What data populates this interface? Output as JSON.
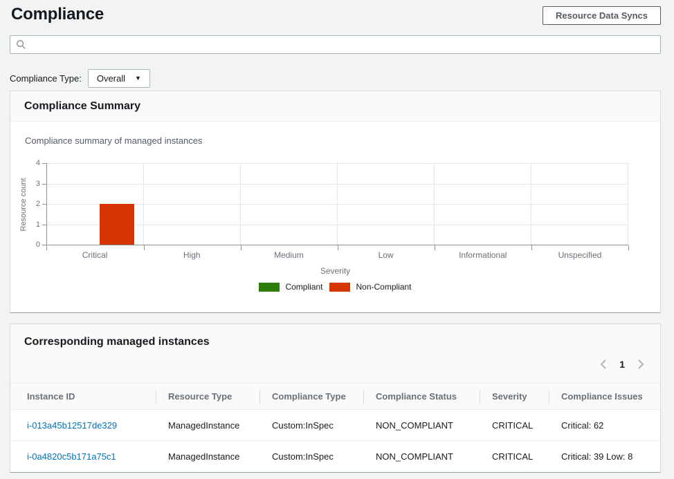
{
  "page": {
    "title": "Compliance"
  },
  "header": {
    "resource_data_syncs_label": "Resource Data Syncs"
  },
  "search": {
    "value": "",
    "placeholder": ""
  },
  "filter": {
    "label": "Compliance Type:",
    "selected_option": "Overall"
  },
  "summary_panel": {
    "title": "Compliance Summary",
    "subtitle": "Compliance summary of managed instances"
  },
  "chart_data": {
    "type": "bar",
    "title": "Compliance summary of managed instances",
    "categories": [
      "Critical",
      "High",
      "Medium",
      "Low",
      "Informational",
      "Unspecified"
    ],
    "series": [
      {
        "name": "Compliant",
        "color": "#2D7D0A",
        "values": [
          0,
          0,
          0,
          0,
          0,
          0
        ]
      },
      {
        "name": "Non-Compliant",
        "color": "#D43501",
        "values": [
          2,
          0,
          0,
          0,
          0,
          0
        ]
      }
    ],
    "xlabel": "Severity",
    "ylabel": "Resource count",
    "ylim": [
      0,
      4
    ],
    "yticks": [
      0,
      1,
      2,
      3,
      4
    ],
    "grid": true,
    "legend_position": "bottom"
  },
  "instances_panel": {
    "title": "Corresponding managed instances",
    "pagination": {
      "current_page": "1"
    },
    "table": {
      "columns": [
        "Instance ID",
        "Resource Type",
        "Compliance Type",
        "Compliance Status",
        "Severity",
        "Compliance Issues"
      ],
      "rows": [
        {
          "instance_id": "i-013a45b12517de329",
          "resource_type": "ManagedInstance",
          "compliance_type": "Custom:InSpec",
          "compliance_status": "NON_COMPLIANT",
          "severity": "CRITICAL",
          "compliance_issues": "Critical: 62"
        },
        {
          "instance_id": "i-0a4820c5b171a75c1",
          "resource_type": "ManagedInstance",
          "compliance_type": "Custom:InSpec",
          "compliance_status": "NON_COMPLIANT",
          "severity": "CRITICAL",
          "compliance_issues": "Critical: 39 Low: 8"
        }
      ]
    }
  },
  "colors": {
    "link": "#0073BB",
    "compliant": "#2D7D0A",
    "non_compliant": "#D43501"
  }
}
